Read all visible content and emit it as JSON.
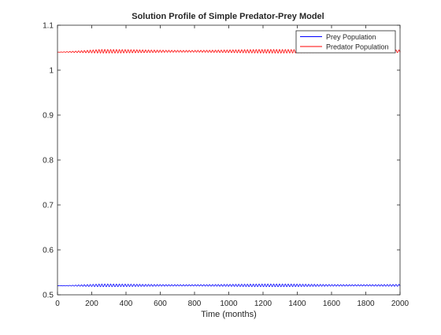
{
  "chart_data": {
    "type": "line",
    "title": "Solution Profile of Simple Predator-Prey Model",
    "xlabel": "Time (months)",
    "ylabel": "",
    "xlim": [
      0,
      2000
    ],
    "ylim": [
      0.5,
      1.1
    ],
    "x_ticks": [
      "0",
      "200",
      "400",
      "600",
      "800",
      "1000",
      "1200",
      "1400",
      "1600",
      "1800",
      "2000"
    ],
    "y_ticks": [
      "0.5",
      "0.6",
      "0.7",
      "0.8",
      "0.9",
      "1",
      "1.1"
    ],
    "grid": false,
    "legend_position": "top-right",
    "series": [
      {
        "name": "Prey Population",
        "color": "#0000ff",
        "baseline": 0.521,
        "initial_value": 0.52,
        "oscillation_amplitude": 0.003,
        "oscillation_period": 17
      },
      {
        "name": "Predator Population",
        "color": "#ff0000",
        "baseline": 1.042,
        "initial_value": 1.04,
        "oscillation_amplitude": 0.004,
        "oscillation_period": 17
      }
    ]
  }
}
